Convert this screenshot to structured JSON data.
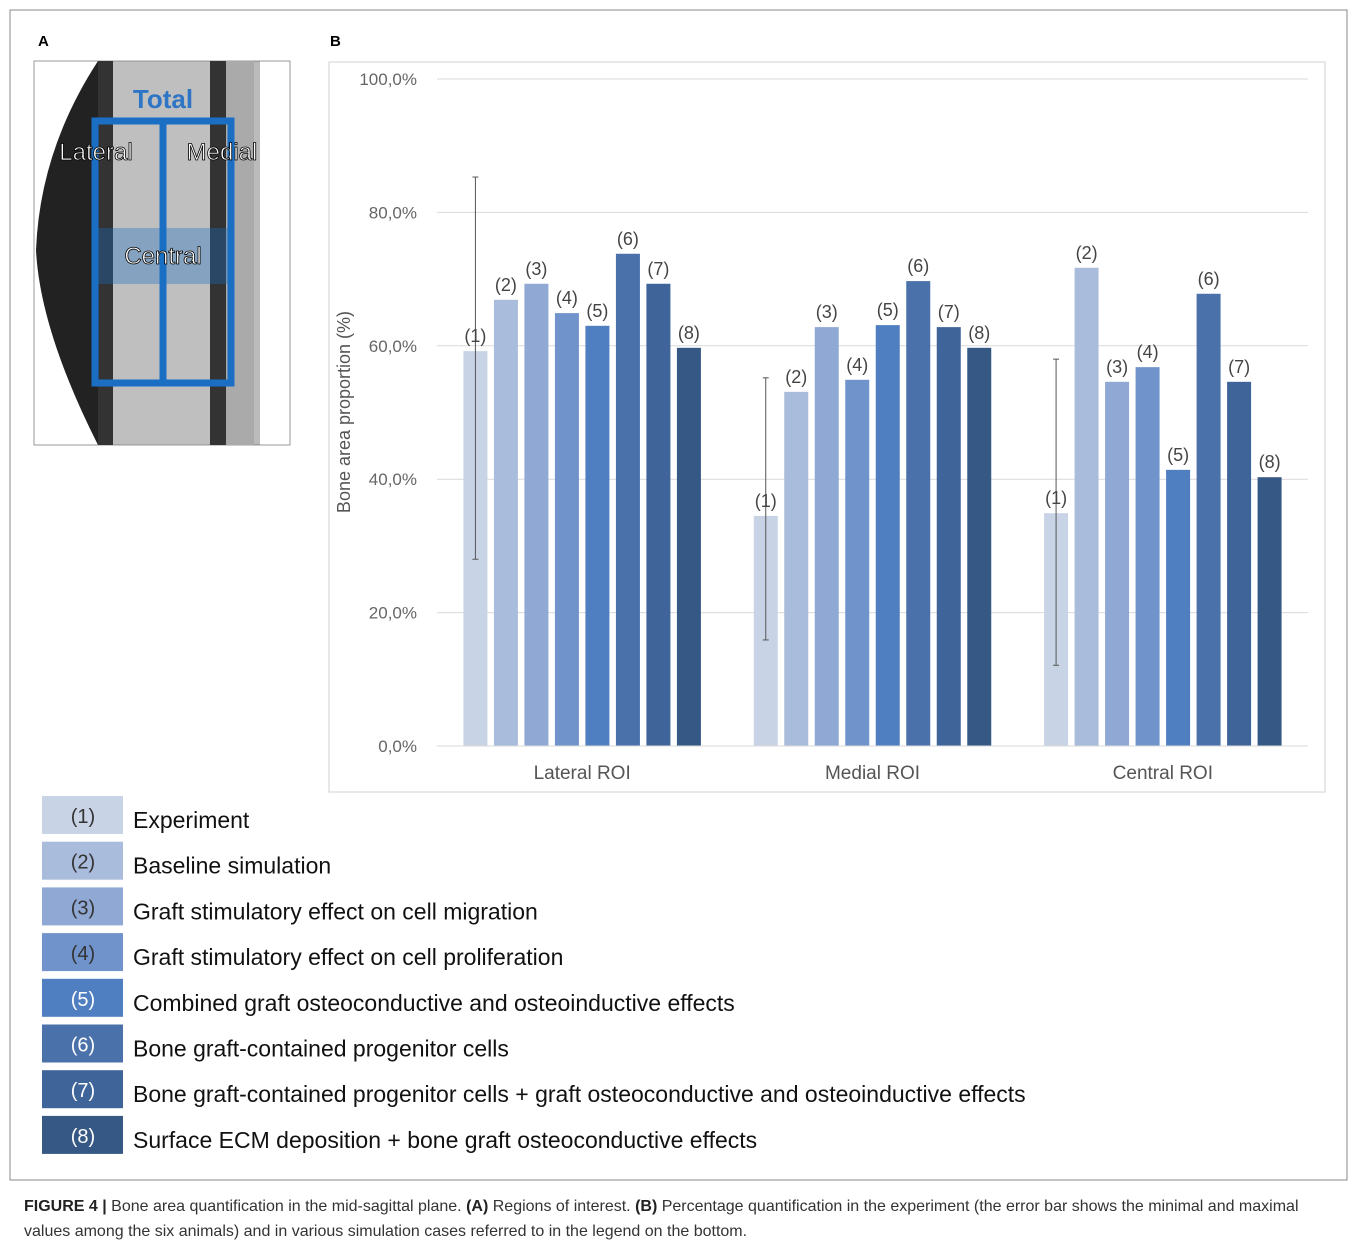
{
  "panels": [
    "A",
    "B"
  ],
  "roi_image": {
    "labels": [
      "Total",
      "Lateral",
      "Medial",
      "Central"
    ]
  },
  "chart_data": {
    "type": "bar",
    "y_label": "Bone area proportion (%)",
    "categories": [
      "Lateral ROI",
      "Medial ROI",
      "Central ROI"
    ],
    "ylim": [
      0,
      100
    ],
    "yticks": [
      {
        "value": 0,
        "label": "0,0%"
      },
      {
        "value": 20,
        "label": "20,0%"
      },
      {
        "value": 40,
        "label": "40,0%"
      },
      {
        "value": 60,
        "label": "60,0%"
      },
      {
        "value": 80,
        "label": "80,0%"
      },
      {
        "value": 100,
        "label": "100,0%"
      }
    ],
    "grid": true,
    "series": [
      {
        "code": "(1)",
        "name": "Experiment",
        "color": "#c9d3e6",
        "values": [
          59.2,
          34.5,
          34.9
        ],
        "error_min": [
          28.0,
          15.9,
          12.1
        ],
        "error_max": [
          85.3,
          55.2,
          58.0
        ]
      },
      {
        "code": "(2)",
        "name": "Baseline simulation",
        "color": "#aabcdc",
        "values": [
          66.9,
          53.1,
          71.7
        ]
      },
      {
        "code": "(3)",
        "name": "Graft stimulatory effect on cell migration",
        "color": "#8fa8d4",
        "values": [
          69.3,
          62.8,
          54.6
        ]
      },
      {
        "code": "(4)",
        "name": "Graft stimulatory effect on cell proliferation",
        "color": "#7093cb",
        "values": [
          64.9,
          54.9,
          56.8
        ]
      },
      {
        "code": "(5)",
        "name": "Combined graft osteoconductive and osteoinductive effects",
        "color": "#4f7fc0",
        "values": [
          63.0,
          63.1,
          41.4
        ]
      },
      {
        "code": "(6)",
        "name": "Bone graft-contained progenitor cells",
        "color": "#4a71aa",
        "values": [
          73.8,
          69.7,
          67.8
        ]
      },
      {
        "code": "(7)",
        "name": "Bone graft-contained progenitor cells + graft osteoconductive and osteoinductive effects",
        "color": "#3f649a",
        "values": [
          69.3,
          62.8,
          54.6
        ]
      },
      {
        "code": "(8)",
        "name": "Surface ECM deposition + bone graft osteoconductive effects",
        "color": "#365884",
        "values": [
          59.7,
          59.7,
          40.3
        ]
      }
    ]
  },
  "caption": {
    "figure": "FIGURE 4 |",
    "text1": "Bone area quantification in the mid-sagittal plane.",
    "a": "(A)",
    "text2": "Regions of interest.",
    "b": "(B)",
    "text3": "Percentage quantification in the experiment (the error bar shows the minimal and maximal values among the six animals) and in various simulation cases referred to in the legend on the bottom."
  }
}
